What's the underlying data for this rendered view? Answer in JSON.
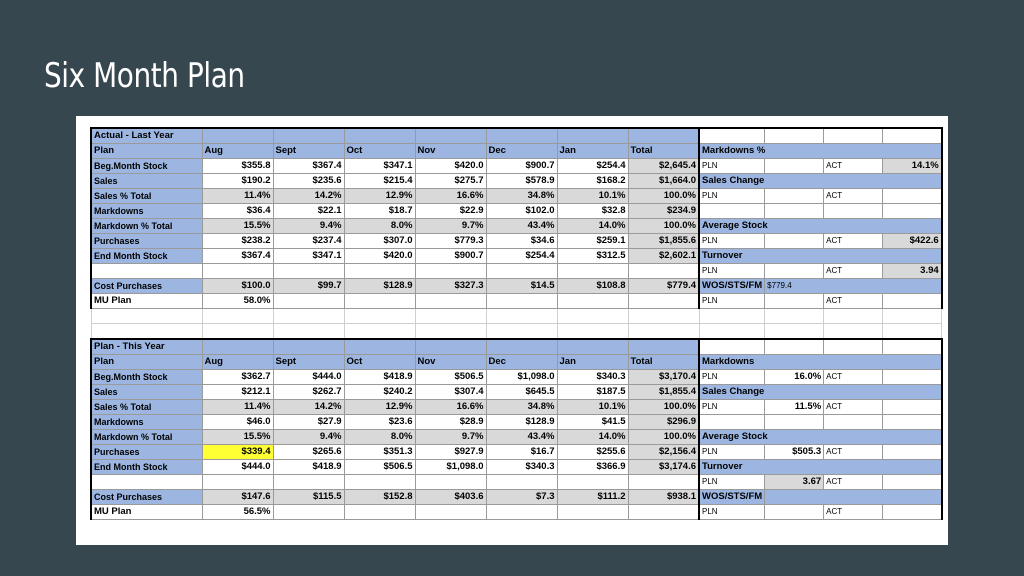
{
  "slide": {
    "title": "Six Month Plan"
  },
  "last_year": {
    "section_label": "Actual - Last Year",
    "plan_label": "Plan",
    "months": [
      "Aug",
      "Sept",
      "Oct",
      "Nov",
      "Dec",
      "Jan",
      "Total"
    ],
    "rows": [
      {
        "label": "Beg.Month Stock",
        "values": [
          "$355.8",
          "$367.4",
          "$347.1",
          "$420.0",
          "$900.7",
          "$254.4",
          "$2,645.4"
        ]
      },
      {
        "label": "Sales",
        "values": [
          "$190.2",
          "$235.6",
          "$215.4",
          "$275.7",
          "$578.9",
          "$168.2",
          "$1,664.0"
        ]
      },
      {
        "label": "Sales % Total",
        "values": [
          "11.4%",
          "14.2%",
          "12.9%",
          "16.6%",
          "34.8%",
          "10.1%",
          "100.0%"
        ]
      },
      {
        "label": "Markdowns",
        "values": [
          "$36.4",
          "$22.1",
          "$18.7",
          "$22.9",
          "$102.0",
          "$32.8",
          "$234.9"
        ]
      },
      {
        "label": "Markdown % Total",
        "values": [
          "15.5%",
          "9.4%",
          "8.0%",
          "9.7%",
          "43.4%",
          "14.0%",
          "100.0%"
        ]
      },
      {
        "label": "Purchases",
        "values": [
          "$238.2",
          "$237.4",
          "$307.0",
          "$779.3",
          "$34.6",
          "$259.1",
          "$1,855.6"
        ]
      },
      {
        "label": "End Month Stock",
        "values": [
          "$367.4",
          "$347.1",
          "$420.0",
          "$900.7",
          "$254.4",
          "$312.5",
          "$2,602.1"
        ]
      }
    ],
    "cost_purchases": {
      "label": "Cost Purchases",
      "values": [
        "$100.0",
        "$99.7",
        "$128.9",
        "$327.3",
        "$14.5",
        "$108.8",
        "$779.4"
      ]
    },
    "mu_plan": {
      "label": "MU Plan",
      "value": "58.0%"
    },
    "side": {
      "markdowns_label": "Markdowns %",
      "sales_change_label": "Sales Change",
      "average_stock_label": "Average Stock",
      "turnover_label": "Turnover",
      "wos_label": "WOS/STS/FM",
      "pln": "PLN",
      "act": "ACT",
      "markdowns_act": "14.1%",
      "average_stock_act": "$422.6",
      "turnover_act": "3.94",
      "wos_value": "$779.4"
    }
  },
  "this_year": {
    "section_label": "Plan - This Year",
    "plan_label": "Plan",
    "months": [
      "Aug",
      "Sept",
      "Oct",
      "Nov",
      "Dec",
      "Jan",
      "Total"
    ],
    "rows": [
      {
        "label": "Beg.Month Stock",
        "values": [
          "$362.7",
          "$444.0",
          "$418.9",
          "$506.5",
          "$1,098.0",
          "$340.3",
          "$3,170.4"
        ]
      },
      {
        "label": "Sales",
        "values": [
          "$212.1",
          "$262.7",
          "$240.2",
          "$307.4",
          "$645.5",
          "$187.5",
          "$1,855.4"
        ]
      },
      {
        "label": "Sales % Total",
        "values": [
          "11.4%",
          "14.2%",
          "12.9%",
          "16.6%",
          "34.8%",
          "10.1%",
          "100.0%"
        ]
      },
      {
        "label": "Markdowns",
        "values": [
          "$46.0",
          "$27.9",
          "$23.6",
          "$28.9",
          "$128.9",
          "$41.5",
          "$296.9"
        ]
      },
      {
        "label": "Markdown % Total",
        "values": [
          "15.5%",
          "9.4%",
          "8.0%",
          "9.7%",
          "43.4%",
          "14.0%",
          "100.0%"
        ]
      },
      {
        "label": "Purchases",
        "values": [
          "$339.4",
          "$265.6",
          "$351.3",
          "$927.9",
          "$16.7",
          "$255.6",
          "$2,156.4"
        ]
      },
      {
        "label": "End Month Stock",
        "values": [
          "$444.0",
          "$418.9",
          "$506.5",
          "$1,098.0",
          "$340.3",
          "$366.9",
          "$3,174.6"
        ]
      }
    ],
    "cost_purchases": {
      "label": "Cost Purchases",
      "values": [
        "$147.6",
        "$115.5",
        "$152.8",
        "$403.6",
        "$7.3",
        "$111.2",
        "$938.1"
      ]
    },
    "mu_plan": {
      "label": "MU Plan",
      "value": "56.5%"
    },
    "side": {
      "markdowns_label": "Markdowns",
      "sales_change_label": "Sales Change",
      "average_stock_label": "Average Stock",
      "turnover_label": "Turnover",
      "wos_label": "WOS/STS/FM",
      "pln": "PLN",
      "act": "ACT",
      "markdowns_pln": "16.0%",
      "sales_change_pln": "11.5%",
      "average_stock_pln": "$505.3",
      "turnover_pln": "3.67"
    }
  },
  "colors": {
    "header_blue": "#9cb6e1",
    "gray_cell": "#d9d9d9",
    "highlight_yellow": "#ffff33",
    "slide_bg": "#37474f"
  }
}
